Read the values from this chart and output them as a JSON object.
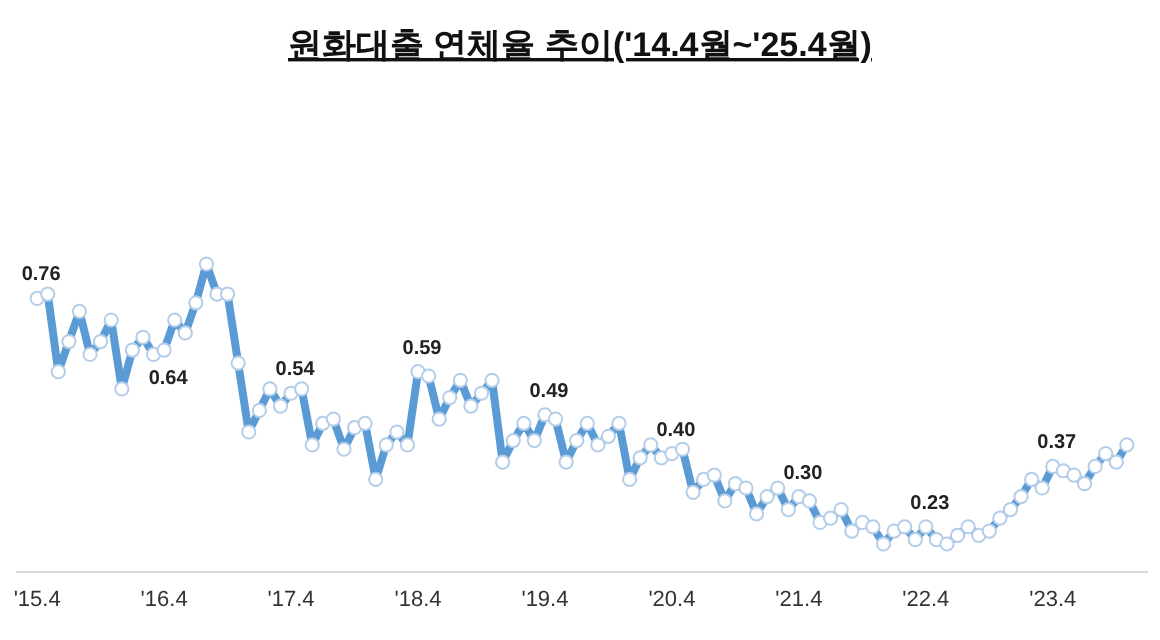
{
  "chart_data": {
    "type": "line",
    "title": "원화대출 연체율 추이('14.4월~'25.4월)",
    "x": [
      "2015-04",
      "2015-05",
      "2015-06",
      "2015-07",
      "2015-08",
      "2015-09",
      "2015-10",
      "2015-11",
      "2015-12",
      "2016-01",
      "2016-02",
      "2016-03",
      "2016-04",
      "2016-05",
      "2016-06",
      "2016-07",
      "2016-08",
      "2016-09",
      "2016-10",
      "2016-11",
      "2016-12",
      "2017-01",
      "2017-02",
      "2017-03",
      "2017-04",
      "2017-05",
      "2017-06",
      "2017-07",
      "2017-08",
      "2017-09",
      "2017-10",
      "2017-11",
      "2017-12",
      "2018-01",
      "2018-02",
      "2018-03",
      "2018-04",
      "2018-05",
      "2018-06",
      "2018-07",
      "2018-08",
      "2018-09",
      "2018-10",
      "2018-11",
      "2018-12",
      "2019-01",
      "2019-02",
      "2019-03",
      "2019-04",
      "2019-05",
      "2019-06",
      "2019-07",
      "2019-08",
      "2019-09",
      "2019-10",
      "2019-11",
      "2019-12",
      "2020-01",
      "2020-02",
      "2020-03",
      "2020-04",
      "2020-05",
      "2020-06",
      "2020-07",
      "2020-08",
      "2020-09",
      "2020-10",
      "2020-11",
      "2020-12",
      "2021-01",
      "2021-02",
      "2021-03",
      "2021-04",
      "2021-05",
      "2021-06",
      "2021-07",
      "2021-08",
      "2021-09",
      "2021-10",
      "2021-11",
      "2021-12",
      "2022-01",
      "2022-02",
      "2022-03",
      "2022-04",
      "2022-05",
      "2022-06",
      "2022-07",
      "2022-08",
      "2022-09",
      "2022-10",
      "2022-11",
      "2022-12",
      "2023-01",
      "2023-02",
      "2023-03",
      "2023-04",
      "2023-05",
      "2023-06",
      "2023-07",
      "2023-08",
      "2023-09",
      "2023-10",
      "2023-11"
    ],
    "series": [
      {
        "color": "#5b9bd5",
        "values": [
          0.76,
          0.77,
          0.59,
          0.66,
          0.73,
          0.63,
          0.66,
          0.71,
          0.55,
          0.64,
          0.67,
          0.63,
          0.64,
          0.71,
          0.68,
          0.75,
          0.84,
          0.77,
          0.77,
          0.61,
          0.45,
          0.5,
          0.55,
          0.51,
          0.54,
          0.55,
          0.42,
          0.47,
          0.48,
          0.41,
          0.46,
          0.47,
          0.34,
          0.42,
          0.45,
          0.42,
          0.59,
          0.58,
          0.48,
          0.53,
          0.57,
          0.51,
          0.54,
          0.57,
          0.38,
          0.43,
          0.47,
          0.43,
          0.49,
          0.48,
          0.38,
          0.43,
          0.47,
          0.42,
          0.44,
          0.47,
          0.34,
          0.39,
          0.42,
          0.39,
          0.4,
          0.41,
          0.31,
          0.34,
          0.35,
          0.29,
          0.33,
          0.32,
          0.26,
          0.3,
          0.32,
          0.27,
          0.3,
          0.29,
          0.24,
          0.25,
          0.27,
          0.22,
          0.24,
          0.23,
          0.19,
          0.22,
          0.23,
          0.2,
          0.23,
          0.2,
          0.19,
          0.21,
          0.23,
          0.21,
          0.22,
          0.25,
          0.27,
          0.3,
          0.34,
          0.32,
          0.37,
          0.36,
          0.35,
          0.33,
          0.37,
          0.4,
          0.38,
          0.42
        ],
        "value_labels": [
          "0.76",
          null,
          null,
          null,
          null,
          null,
          null,
          null,
          null,
          null,
          null,
          null,
          "0.64",
          null,
          null,
          null,
          null,
          null,
          null,
          null,
          null,
          null,
          null,
          null,
          "0.54",
          null,
          null,
          null,
          null,
          null,
          null,
          null,
          null,
          null,
          null,
          null,
          "0.59",
          null,
          null,
          null,
          null,
          null,
          null,
          null,
          null,
          null,
          null,
          null,
          "0.49",
          null,
          null,
          null,
          null,
          null,
          null,
          null,
          null,
          null,
          null,
          null,
          "0.40",
          null,
          null,
          null,
          null,
          null,
          null,
          null,
          null,
          null,
          null,
          null,
          "0.30",
          null,
          null,
          null,
          null,
          null,
          null,
          null,
          null,
          null,
          null,
          null,
          "0.23",
          null,
          null,
          null,
          null,
          null,
          null,
          null,
          null,
          null,
          null,
          null,
          "0.37",
          null,
          null,
          null,
          null,
          null,
          null,
          null
        ]
      }
    ],
    "xlim": [
      "2015-02",
      "2024-01"
    ],
    "xticks": [
      {
        "value": "2015-04",
        "label": "'15.4"
      },
      {
        "value": "2016-04",
        "label": "'16.4"
      },
      {
        "value": "2017-04",
        "label": "'17.4"
      },
      {
        "value": "2018-04",
        "label": "'18.4"
      },
      {
        "value": "2019-04",
        "label": "'19.4"
      },
      {
        "value": "2020-04",
        "label": "'20.4"
      },
      {
        "value": "2021-04",
        "label": "'21.4"
      },
      {
        "value": "2022-04",
        "label": "'22.4"
      },
      {
        "value": "2023-04",
        "label": "'23.4"
      }
    ],
    "marker": "circle",
    "line_style": "solid",
    "grid": false
  }
}
